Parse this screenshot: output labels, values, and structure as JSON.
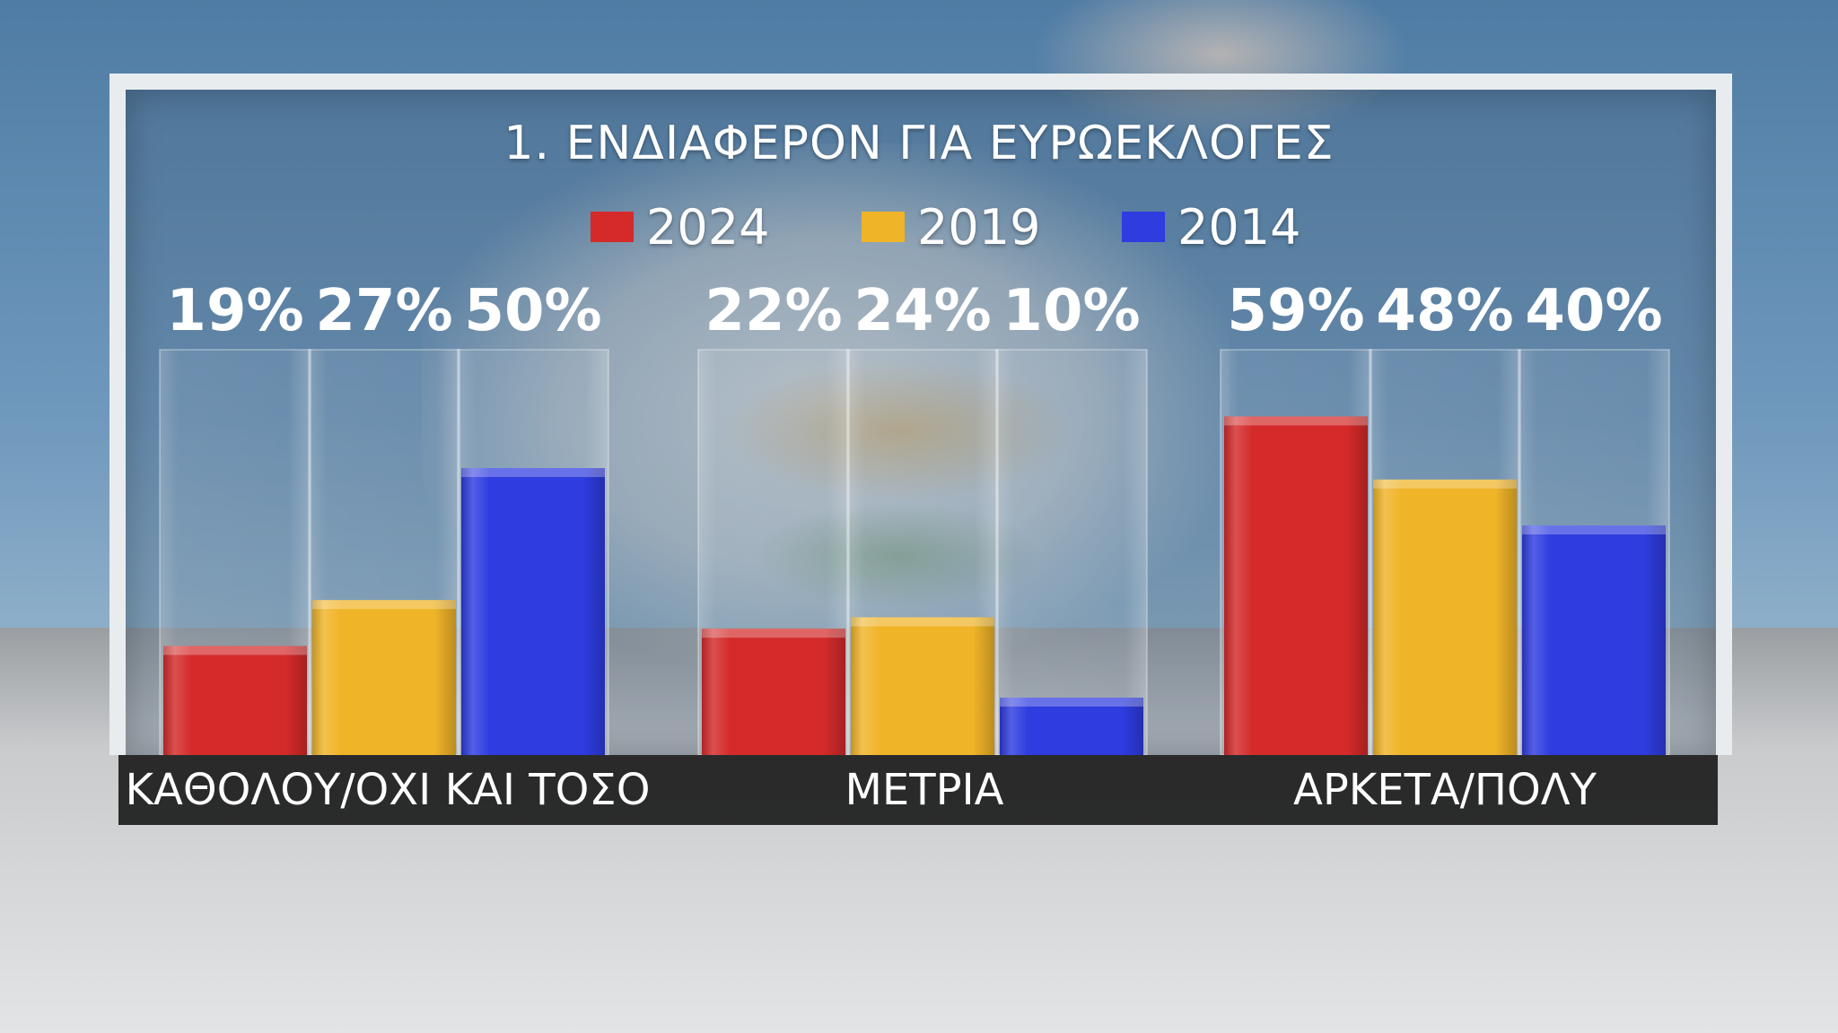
{
  "chart_data": {
    "type": "bar",
    "title": "1. ΕΝΔΙΑΦΕΡΟΝ ΓΙΑ ΕΥΡΩΕΚΛΟΓΕΣ",
    "categories": [
      "ΚΑΘΟΛΟΥ/ΟΧΙ ΚΑΙ ΤΟΣΟ",
      "ΜΕΤΡΙΑ",
      "ΑΡΚΕΤΑ/ΠΟΛΥ"
    ],
    "series": [
      {
        "name": "2024",
        "color": "#d42a2a",
        "values": [
          19,
          22,
          59
        ],
        "labels": [
          "19%",
          "22%",
          "59%"
        ]
      },
      {
        "name": "2019",
        "color": "#f0b428",
        "values": [
          27,
          24,
          48
        ],
        "labels": [
          "27%",
          "24%",
          "48%"
        ]
      },
      {
        "name": "2014",
        "color": "#2e3ce0",
        "values": [
          50,
          10,
          40
        ],
        "labels": [
          "50%",
          "10%",
          "40%"
        ]
      }
    ],
    "ylim": [
      0,
      100
    ],
    "legend_position": "top-center",
    "grid": false
  }
}
